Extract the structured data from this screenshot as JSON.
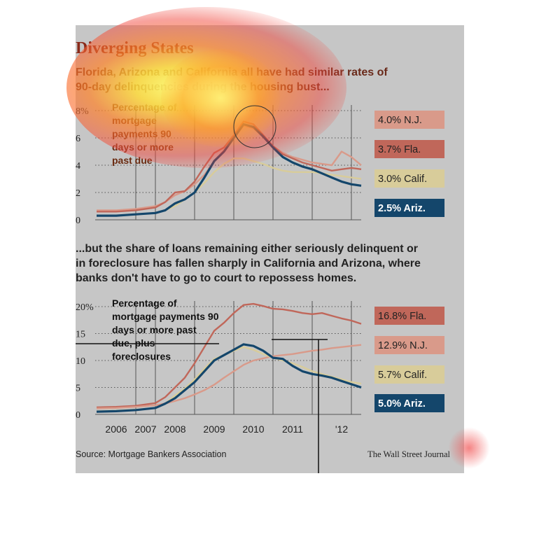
{
  "title": "Diverging States",
  "subtitle1": "Florida, Arizona and California all have had similar rates of 90-day delinquencies during the housing bust...",
  "subtitle2": "...but the share of loans remaining either seriously delinquent or in foreclosure has fallen sharply in California and Arizona, where banks don't have to go to court to repossess homes.",
  "source": "Source: Mortgage Bankers Association",
  "credit": "The Wall Street Journal",
  "colors": {
    "nj": "#d99a8a",
    "fla": "#c0675a",
    "calif": "#d8cc9a",
    "ariz": "#14466b",
    "background": "#c6c6c6",
    "title": "#8a2a1a"
  },
  "chart_data": [
    {
      "type": "line",
      "annotation": "Percentage of mortgage payments 90 days or more past due",
      "y_ticks": [
        "8%",
        "6",
        "4",
        "2",
        "0"
      ],
      "ylim": [
        0,
        8
      ],
      "x": [
        2005.5,
        2006.0,
        2006.5,
        2007.0,
        2007.25,
        2007.5,
        2007.75,
        2008.0,
        2008.25,
        2008.5,
        2008.75,
        2009.0,
        2009.25,
        2009.5,
        2009.75,
        2010.0,
        2010.25,
        2010.5,
        2010.75,
        2011.0,
        2011.25,
        2011.5,
        2011.75,
        2012.0,
        2012.25
      ],
      "series": [
        {
          "name": "N.J.",
          "end_label": "4.0% N.J.",
          "color_key": "nj",
          "values": [
            0.7,
            0.7,
            0.8,
            1.0,
            1.3,
            1.8,
            2.1,
            2.6,
            3.3,
            4.3,
            5.1,
            6.0,
            6.9,
            6.7,
            6.1,
            5.4,
            4.9,
            4.6,
            4.4,
            4.2,
            4.1,
            4.0,
            5.0,
            4.6,
            4.0
          ]
        },
        {
          "name": "Fla.",
          "end_label": "3.7% Fla.",
          "color_key": "fla",
          "values": [
            0.6,
            0.6,
            0.7,
            0.9,
            1.3,
            2.0,
            2.1,
            2.8,
            3.9,
            4.9,
            5.3,
            6.2,
            7.2,
            7.0,
            6.2,
            5.4,
            4.8,
            4.5,
            4.2,
            4.0,
            3.8,
            3.6,
            3.7,
            3.8,
            3.7
          ]
        },
        {
          "name": "Calif.",
          "end_label": "3.0% Calif.",
          "color_key": "calif",
          "values": [
            0.3,
            0.3,
            0.4,
            0.5,
            0.7,
            1.0,
            1.5,
            2.0,
            2.7,
            3.5,
            4.1,
            4.5,
            4.5,
            4.3,
            4.1,
            3.8,
            3.6,
            3.5,
            3.5,
            3.5,
            3.4,
            3.3,
            3.2,
            3.1,
            3.0
          ]
        },
        {
          "name": "Ariz.",
          "end_label": "2.5% Ariz.",
          "color_key": "ariz",
          "values": [
            0.3,
            0.3,
            0.4,
            0.5,
            0.7,
            1.2,
            1.5,
            2.0,
            3.1,
            4.3,
            5.0,
            6.0,
            7.0,
            6.8,
            6.1,
            5.3,
            4.6,
            4.2,
            3.9,
            3.7,
            3.4,
            3.1,
            2.8,
            2.6,
            2.5
          ]
        }
      ]
    },
    {
      "type": "line",
      "annotation": "Percentage of mortgage payments 90 days or more past due, plus foreclosures",
      "y_ticks": [
        "20%",
        "15",
        "10",
        "5",
        "0"
      ],
      "ylim": [
        0,
        20
      ],
      "x_tick_labels": [
        "2006",
        "2007",
        "2008",
        "2009",
        "2010",
        "2011",
        "'12"
      ],
      "x": [
        2005.5,
        2006.0,
        2006.5,
        2007.0,
        2007.25,
        2007.5,
        2007.75,
        2008.0,
        2008.25,
        2008.5,
        2008.75,
        2009.0,
        2009.25,
        2009.5,
        2009.75,
        2010.0,
        2010.25,
        2010.5,
        2010.75,
        2011.0,
        2011.25,
        2011.5,
        2011.75,
        2012.0,
        2012.25
      ],
      "series": [
        {
          "name": "Fla.",
          "end_label": "16.8% Fla.",
          "color_key": "fla",
          "values": [
            1.3,
            1.4,
            1.6,
            2.1,
            3.2,
            5.0,
            6.8,
            9.5,
            12.5,
            15.5,
            17.0,
            18.8,
            20.3,
            20.5,
            20.1,
            19.6,
            19.5,
            19.2,
            18.8,
            18.6,
            18.8,
            18.3,
            17.8,
            17.4,
            16.8
          ]
        },
        {
          "name": "N.J.",
          "end_label": "12.9% N.J.",
          "color_key": "nj",
          "values": [
            1.1,
            1.2,
            1.4,
            1.7,
            2.0,
            2.5,
            3.0,
            3.7,
            4.5,
            5.5,
            6.8,
            8.0,
            9.2,
            10.0,
            10.4,
            10.8,
            11.0,
            11.2,
            11.5,
            11.8,
            12.0,
            12.3,
            12.5,
            12.7,
            12.9
          ]
        },
        {
          "name": "Calif.",
          "end_label": "5.7% Calif.",
          "color_key": "calif",
          "values": [
            0.6,
            0.7,
            0.9,
            1.2,
            2.0,
            3.5,
            4.8,
            6.5,
            8.5,
            10.3,
            11.0,
            11.8,
            12.5,
            12.0,
            11.2,
            10.5,
            10.0,
            9.5,
            8.8,
            8.0,
            7.5,
            7.0,
            6.5,
            6.0,
            5.7
          ]
        },
        {
          "name": "Ariz.",
          "end_label": "5.0% Ariz.",
          "color_key": "ariz",
          "values": [
            0.5,
            0.6,
            0.8,
            1.2,
            2.0,
            3.0,
            4.5,
            6.0,
            8.0,
            10.0,
            11.0,
            12.0,
            13.0,
            12.7,
            11.8,
            10.5,
            10.3,
            9.0,
            8.0,
            7.5,
            7.2,
            6.8,
            6.2,
            5.6,
            5.0
          ]
        }
      ]
    }
  ]
}
